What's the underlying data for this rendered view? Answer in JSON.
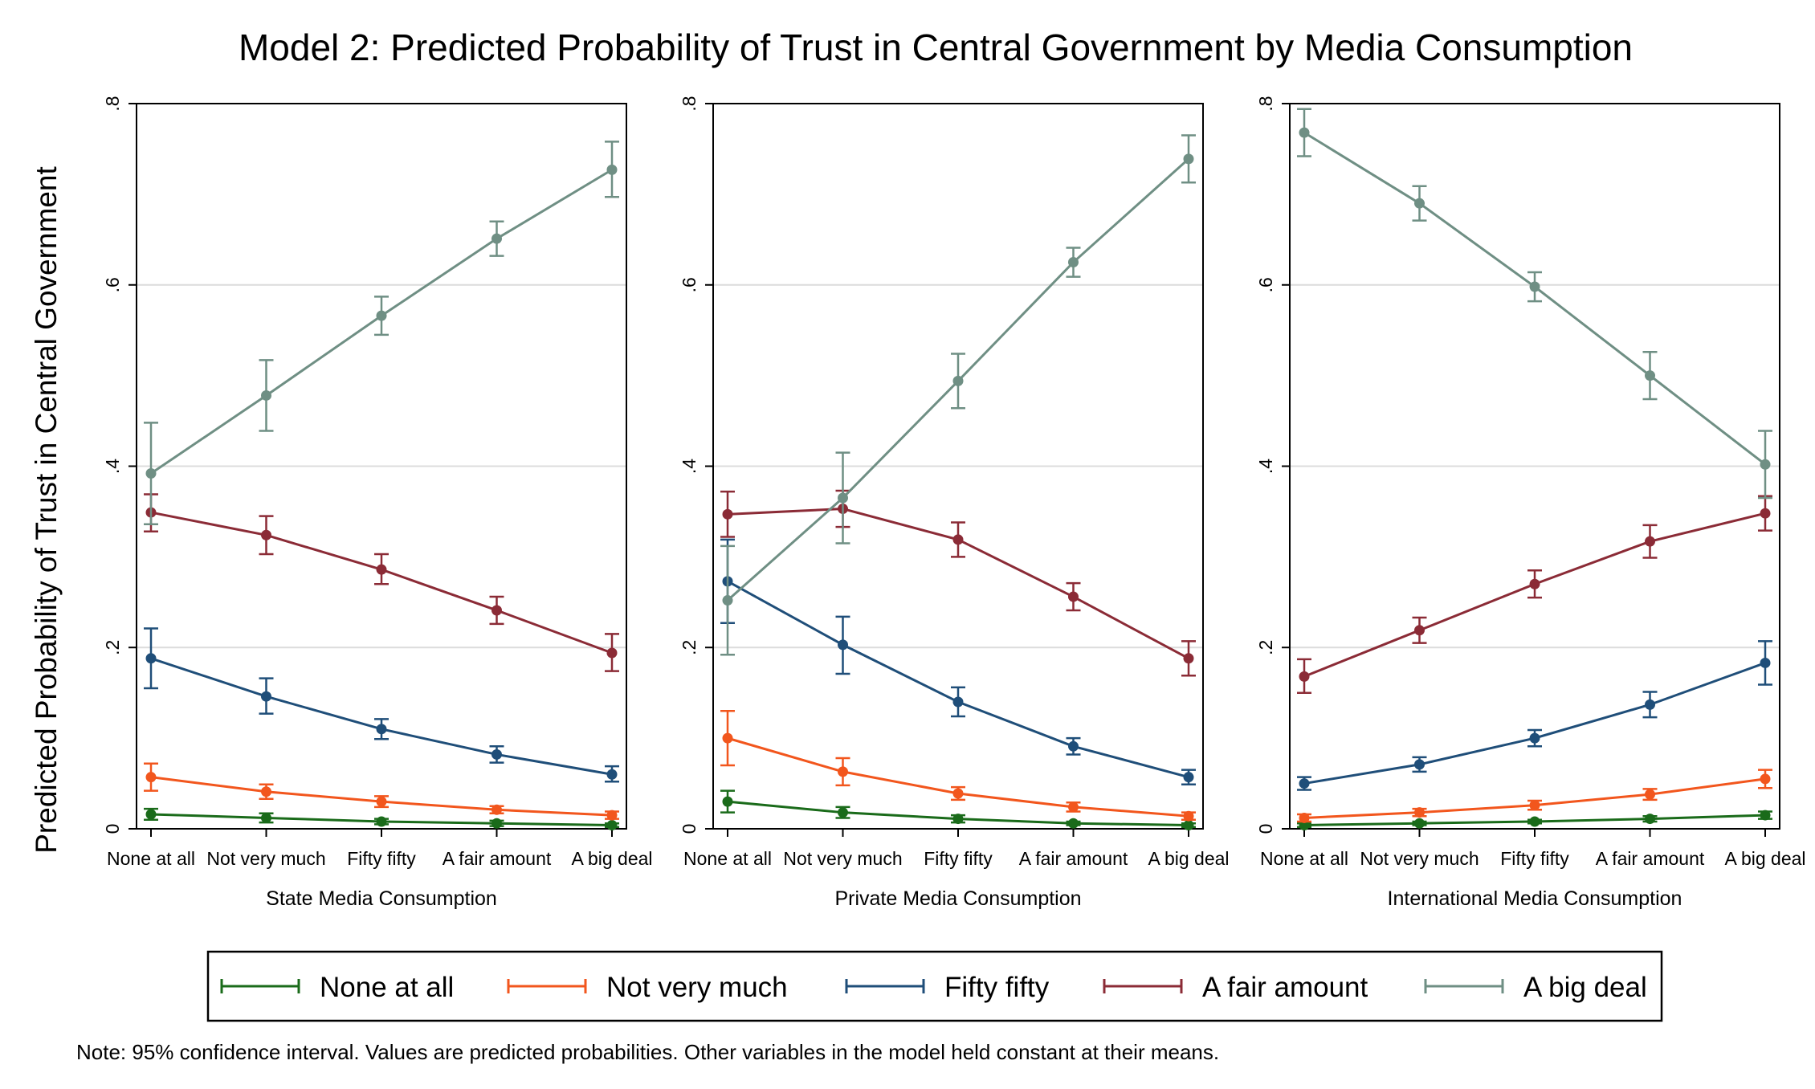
{
  "title": "Model 2: Predicted Probability of Trust in Central Government by Media Consumption",
  "ylabel": "Predicted Probability of Trust in Central Government",
  "note": "Note: 95% confidence interval. Values are predicted probabilities. Other variables in the model held constant at their means.",
  "legend": {
    "position": "bottom",
    "items": [
      {
        "label": "None at all",
        "color": "#1a6b1a"
      },
      {
        "label": "Not very much",
        "color": "#f2561d"
      },
      {
        "label": "Fifty fifty",
        "color": "#1f4e79"
      },
      {
        "label": "A fair amount",
        "color": "#8b2b36"
      },
      {
        "label": "A big deal",
        "color": "#6f8f84"
      }
    ]
  },
  "chart_data": [
    {
      "type": "line",
      "xlabel": "State Media Consumption",
      "categories": [
        "None at all",
        "Not very much",
        "Fifty fifty",
        "A fair amount",
        "A big deal"
      ],
      "ylim": [
        0,
        0.8
      ],
      "yticks": [
        {
          "value": 0,
          "label": "0"
        },
        {
          "value": 0.2,
          "label": ".2"
        },
        {
          "value": 0.4,
          "label": ".4"
        },
        {
          "value": 0.6,
          "label": ".6"
        },
        {
          "value": 0.8,
          "label": ".8"
        }
      ],
      "grid": true,
      "series": [
        {
          "name": "None at all",
          "color": "#1a6b1a",
          "values": [
            0.016,
            0.012,
            0.008,
            0.006,
            0.004
          ],
          "lower": [
            0.01,
            0.007,
            0.005,
            0.003,
            0.002
          ],
          "upper": [
            0.022,
            0.017,
            0.011,
            0.009,
            0.006
          ]
        },
        {
          "name": "Not very much",
          "color": "#f2561d",
          "values": [
            0.057,
            0.041,
            0.03,
            0.021,
            0.015
          ],
          "lower": [
            0.042,
            0.033,
            0.024,
            0.017,
            0.011
          ],
          "upper": [
            0.072,
            0.049,
            0.036,
            0.025,
            0.019
          ]
        },
        {
          "name": "Fifty fifty",
          "color": "#1f4e79",
          "values": [
            0.188,
            0.146,
            0.11,
            0.082,
            0.06
          ],
          "lower": [
            0.155,
            0.127,
            0.099,
            0.073,
            0.052
          ],
          "upper": [
            0.221,
            0.166,
            0.121,
            0.091,
            0.069
          ]
        },
        {
          "name": "A fair amount",
          "color": "#8b2b36",
          "values": [
            0.349,
            0.324,
            0.286,
            0.241,
            0.194
          ],
          "lower": [
            0.328,
            0.303,
            0.27,
            0.226,
            0.174
          ],
          "upper": [
            0.369,
            0.345,
            0.303,
            0.256,
            0.215
          ]
        },
        {
          "name": "A big deal",
          "color": "#6f8f84",
          "values": [
            0.392,
            0.478,
            0.566,
            0.651,
            0.727
          ],
          "lower": [
            0.336,
            0.439,
            0.545,
            0.632,
            0.697
          ],
          "upper": [
            0.448,
            0.517,
            0.587,
            0.67,
            0.758
          ]
        }
      ]
    },
    {
      "type": "line",
      "xlabel": "Private Media Consumption",
      "categories": [
        "None at all",
        "Not very much",
        "Fifty fifty",
        "A fair amount",
        "A big deal"
      ],
      "ylim": [
        0,
        0.8
      ],
      "yticks": [
        {
          "value": 0,
          "label": "0"
        },
        {
          "value": 0.2,
          "label": ".2"
        },
        {
          "value": 0.4,
          "label": ".4"
        },
        {
          "value": 0.6,
          "label": ".6"
        },
        {
          "value": 0.8,
          "label": ".8"
        }
      ],
      "grid": true,
      "series": [
        {
          "name": "None at all",
          "color": "#1a6b1a",
          "values": [
            0.03,
            0.018,
            0.011,
            0.006,
            0.004
          ],
          "lower": [
            0.018,
            0.012,
            0.007,
            0.004,
            0.002
          ],
          "upper": [
            0.042,
            0.024,
            0.015,
            0.008,
            0.006
          ]
        },
        {
          "name": "Not very much",
          "color": "#f2561d",
          "values": [
            0.1,
            0.063,
            0.039,
            0.024,
            0.014
          ],
          "lower": [
            0.07,
            0.048,
            0.032,
            0.019,
            0.01
          ],
          "upper": [
            0.13,
            0.078,
            0.046,
            0.029,
            0.018
          ]
        },
        {
          "name": "Fifty fifty",
          "color": "#1f4e79",
          "values": [
            0.273,
            0.203,
            0.14,
            0.091,
            0.057
          ],
          "lower": [
            0.227,
            0.171,
            0.124,
            0.082,
            0.049
          ],
          "upper": [
            0.319,
            0.234,
            0.156,
            0.1,
            0.065
          ]
        },
        {
          "name": "A fair amount",
          "color": "#8b2b36",
          "values": [
            0.347,
            0.353,
            0.319,
            0.256,
            0.188
          ],
          "lower": [
            0.322,
            0.333,
            0.3,
            0.241,
            0.169
          ],
          "upper": [
            0.372,
            0.373,
            0.338,
            0.271,
            0.207
          ]
        },
        {
          "name": "A big deal",
          "color": "#6f8f84",
          "values": [
            0.252,
            0.365,
            0.494,
            0.625,
            0.739
          ],
          "lower": [
            0.192,
            0.315,
            0.464,
            0.609,
            0.713
          ],
          "upper": [
            0.312,
            0.415,
            0.524,
            0.641,
            0.765
          ]
        }
      ]
    },
    {
      "type": "line",
      "xlabel": "International Media Consumption",
      "categories": [
        "None at all",
        "Not very much",
        "Fifty fifty",
        "A fair amount",
        "A big deal"
      ],
      "ylim": [
        0,
        0.8
      ],
      "yticks": [
        {
          "value": 0,
          "label": "0"
        },
        {
          "value": 0.2,
          "label": ".2"
        },
        {
          "value": 0.4,
          "label": ".4"
        },
        {
          "value": 0.6,
          "label": ".6"
        },
        {
          "value": 0.8,
          "label": ".8"
        }
      ],
      "grid": true,
      "series": [
        {
          "name": "None at all",
          "color": "#1a6b1a",
          "values": [
            0.004,
            0.006,
            0.008,
            0.011,
            0.015
          ],
          "lower": [
            0.002,
            0.004,
            0.006,
            0.008,
            0.011
          ],
          "upper": [
            0.006,
            0.008,
            0.01,
            0.014,
            0.019
          ]
        },
        {
          "name": "Not very much",
          "color": "#f2561d",
          "values": [
            0.012,
            0.018,
            0.026,
            0.038,
            0.055
          ],
          "lower": [
            0.008,
            0.014,
            0.021,
            0.032,
            0.045
          ],
          "upper": [
            0.016,
            0.022,
            0.031,
            0.044,
            0.065
          ]
        },
        {
          "name": "Fifty fifty",
          "color": "#1f4e79",
          "values": [
            0.05,
            0.071,
            0.1,
            0.137,
            0.183
          ],
          "lower": [
            0.043,
            0.063,
            0.091,
            0.123,
            0.159
          ],
          "upper": [
            0.057,
            0.079,
            0.109,
            0.151,
            0.207
          ]
        },
        {
          "name": "A fair amount",
          "color": "#8b2b36",
          "values": [
            0.168,
            0.219,
            0.27,
            0.317,
            0.348
          ],
          "lower": [
            0.15,
            0.205,
            0.255,
            0.299,
            0.329
          ],
          "upper": [
            0.187,
            0.233,
            0.285,
            0.335,
            0.367
          ]
        },
        {
          "name": "A big deal",
          "color": "#6f8f84",
          "values": [
            0.768,
            0.69,
            0.598,
            0.5,
            0.402
          ],
          "lower": [
            0.742,
            0.671,
            0.582,
            0.474,
            0.365
          ],
          "upper": [
            0.794,
            0.709,
            0.614,
            0.526,
            0.439
          ]
        }
      ]
    }
  ]
}
